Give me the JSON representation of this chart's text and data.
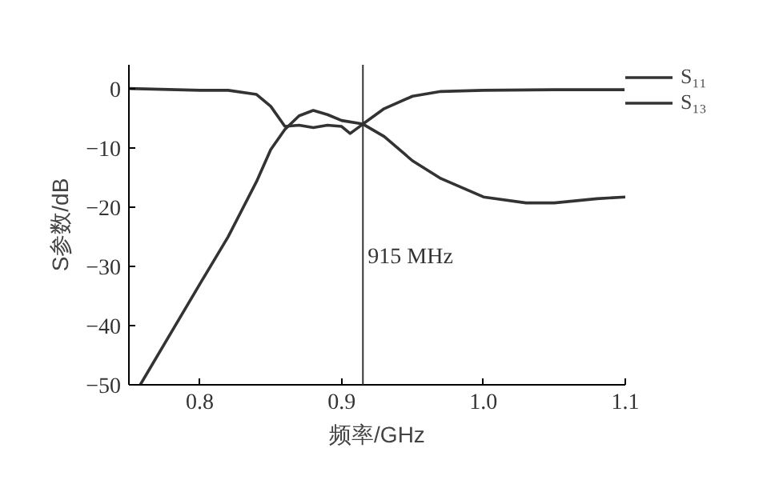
{
  "chart_data": {
    "type": "line",
    "xlabel": "频率/GHz",
    "ylabel": "S参数/dB",
    "xlim": [
      0.75,
      1.1
    ],
    "xticks": [
      0.8,
      0.9,
      {
        "value": 1.0,
        "label": "1.0"
      },
      1.1
    ],
    "ylim": [
      -50,
      4
    ],
    "yticks": [
      0,
      -10,
      -20,
      -30,
      -40,
      -50
    ],
    "grid": false,
    "legend": "top right",
    "marker": "none",
    "line_style": "solid",
    "ref_lines": [
      {
        "axis": "x",
        "value": 0.915,
        "label": "915 MHz",
        "color": "#333333"
      }
    ],
    "series": [
      {
        "name": "S₁₁",
        "color": "#333333",
        "x": [
          0.75,
          0.8,
          0.82,
          0.84,
          0.85,
          0.86,
          0.87,
          0.88,
          0.89,
          0.9,
          0.906,
          0.915,
          0.93,
          0.95,
          0.97,
          1.0,
          1.03,
          1.05,
          1.08,
          1.1
        ],
        "values": [
          0,
          -0.3,
          -0.3,
          -1,
          -3,
          -6.4,
          -6.2,
          -6.6,
          -6.2,
          -6.4,
          -7.6,
          -6,
          -8.1,
          -12.2,
          -15.2,
          -18.3,
          -19.3,
          -19.3,
          -18.6,
          -18.3
        ]
      },
      {
        "name": "S₁₃",
        "color": "#333333",
        "x": [
          0.758,
          0.8,
          0.82,
          0.84,
          0.85,
          0.86,
          0.87,
          0.88,
          0.89,
          0.9,
          0.915,
          0.93,
          0.95,
          0.97,
          1.0,
          1.05,
          1.1
        ],
        "values": [
          -50,
          -33,
          -25,
          -15.7,
          -10.3,
          -6.9,
          -4.6,
          -3.7,
          -4.4,
          -5.4,
          -6,
          -3.4,
          -1.3,
          -0.5,
          -0.3,
          -0.2,
          -0.2
        ]
      }
    ]
  }
}
